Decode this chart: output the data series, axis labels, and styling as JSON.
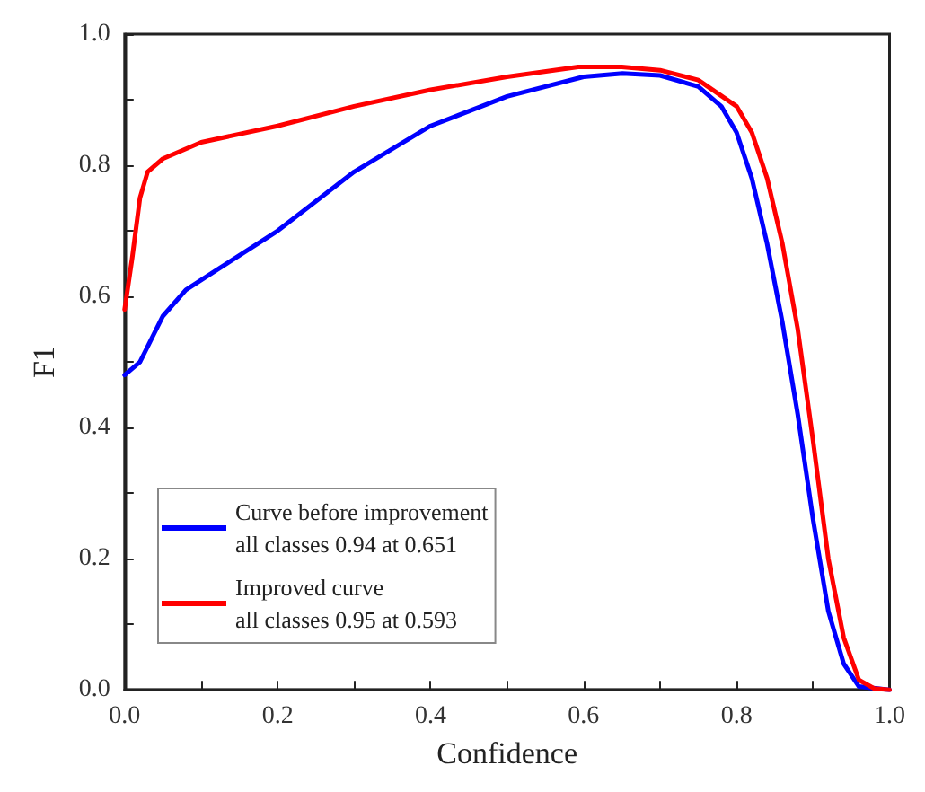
{
  "chart_data": {
    "type": "line",
    "xlabel": "Confidence",
    "ylabel": "F1",
    "xlim": [
      0,
      1
    ],
    "ylim": [
      0,
      1
    ],
    "xticks": [
      {
        "value": 0,
        "label": "0.0"
      },
      {
        "value": 0.1,
        "label": null
      },
      {
        "value": 0.2,
        "label": "0.2"
      },
      {
        "value": 0.3,
        "label": null
      },
      {
        "value": 0.4,
        "label": "0.4"
      },
      {
        "value": 0.5,
        "label": null
      },
      {
        "value": 0.6,
        "label": "0.6"
      },
      {
        "value": 0.7,
        "label": null
      },
      {
        "value": 0.8,
        "label": "0.8"
      },
      {
        "value": 0.9,
        "label": null
      },
      {
        "value": 1,
        "label": "1.0"
      }
    ],
    "yticks": [
      {
        "value": 0,
        "label": "0.0"
      },
      {
        "value": 0.1,
        "label": null
      },
      {
        "value": 0.2,
        "label": "0.2"
      },
      {
        "value": 0.3,
        "label": null
      },
      {
        "value": 0.4,
        "label": "0.4"
      },
      {
        "value": 0.5,
        "label": null
      },
      {
        "value": 0.6,
        "label": "0.6"
      },
      {
        "value": 0.7,
        "label": null
      },
      {
        "value": 0.8,
        "label": "0.8"
      },
      {
        "value": 0.9,
        "label": null
      },
      {
        "value": 1,
        "label": "1.0"
      }
    ],
    "grid": false,
    "legend": "bottom left",
    "marker": "none",
    "line_style": "solid",
    "series": [
      {
        "name": "Curve before improvement\nall classes 0.94 at 0.651",
        "color": "#0000ff",
        "x": [
          0,
          0.02,
          0.05,
          0.08,
          0.12,
          0.2,
          0.3,
          0.4,
          0.5,
          0.6,
          0.651,
          0.7,
          0.75,
          0.78,
          0.8,
          0.82,
          0.84,
          0.86,
          0.88,
          0.9,
          0.92,
          0.94,
          0.96,
          1.0
        ],
        "values": [
          0.48,
          0.5,
          0.57,
          0.61,
          0.64,
          0.7,
          0.79,
          0.86,
          0.905,
          0.935,
          0.94,
          0.937,
          0.92,
          0.89,
          0.85,
          0.78,
          0.68,
          0.56,
          0.42,
          0.26,
          0.12,
          0.04,
          0.005,
          0
        ]
      },
      {
        "name": "Improved curve\nall classes 0.95 at 0.593",
        "color": "#ff0000",
        "x": [
          0,
          0.01,
          0.02,
          0.03,
          0.05,
          0.1,
          0.2,
          0.3,
          0.4,
          0.5,
          0.593,
          0.65,
          0.7,
          0.75,
          0.8,
          0.82,
          0.84,
          0.86,
          0.88,
          0.9,
          0.92,
          0.94,
          0.96,
          0.98,
          1.0
        ],
        "values": [
          0.58,
          0.66,
          0.75,
          0.79,
          0.81,
          0.835,
          0.86,
          0.89,
          0.915,
          0.935,
          0.95,
          0.95,
          0.945,
          0.93,
          0.89,
          0.85,
          0.78,
          0.68,
          0.55,
          0.38,
          0.2,
          0.08,
          0.015,
          0.002,
          0
        ]
      }
    ]
  }
}
